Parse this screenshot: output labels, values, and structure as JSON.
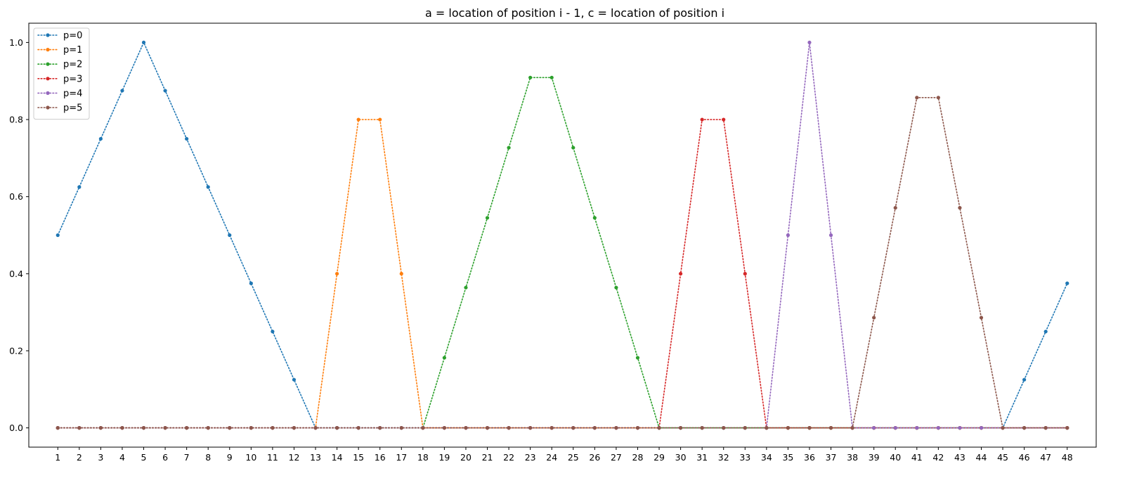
{
  "chart_data": {
    "type": "line",
    "title": "a = location of position i - 1, c = location of position i",
    "xlabel": "",
    "ylabel": "",
    "x": [
      1,
      2,
      3,
      4,
      5,
      6,
      7,
      8,
      9,
      10,
      11,
      12,
      13,
      14,
      15,
      16,
      17,
      18,
      19,
      20,
      21,
      22,
      23,
      24,
      25,
      26,
      27,
      28,
      29,
      30,
      31,
      32,
      33,
      34,
      35,
      36,
      37,
      38,
      39,
      40,
      41,
      42,
      43,
      44,
      45,
      46,
      47,
      48
    ],
    "x_tick_labels": [
      "1",
      "2",
      "3",
      "4",
      "5",
      "6",
      "7",
      "8",
      "9",
      "10",
      "11",
      "12",
      "13",
      "14",
      "15",
      "16",
      "17",
      "18",
      "19",
      "20",
      "21",
      "22",
      "23",
      "24",
      "25",
      "26",
      "27",
      "28",
      "29",
      "30",
      "31",
      "32",
      "33",
      "34",
      "35",
      "36",
      "37",
      "38",
      "39",
      "40",
      "41",
      "42",
      "43",
      "44",
      "45",
      "46",
      "47",
      "48"
    ],
    "y_ticks": [
      0.0,
      0.2,
      0.4,
      0.6,
      0.8,
      1.0
    ],
    "y_tick_labels": [
      "0.0",
      "0.2",
      "0.4",
      "0.6",
      "0.8",
      "1.0"
    ],
    "xlim": [
      -0.35,
      49.35
    ],
    "ylim": [
      -0.05,
      1.05
    ],
    "grid": false,
    "legend": "upper-left",
    "line_style": "dotted",
    "marker": "circle",
    "series": [
      {
        "name": "p=0",
        "color": "#1f77b4",
        "values": [
          0.5,
          0.625,
          0.75,
          0.875,
          1.0,
          0.875,
          0.75,
          0.625,
          0.5,
          0.375,
          0.25,
          0.125,
          0,
          0,
          0,
          0,
          0,
          0,
          0,
          0,
          0,
          0,
          0,
          0,
          0,
          0,
          0,
          0,
          0,
          0,
          0,
          0,
          0,
          0,
          0,
          0,
          0,
          0,
          0,
          0,
          0,
          0,
          0,
          0,
          0,
          0.125,
          0.25,
          0.375
        ]
      },
      {
        "name": "p=1",
        "color": "#ff7f0e",
        "values": [
          0,
          0,
          0,
          0,
          0,
          0,
          0,
          0,
          0,
          0,
          0,
          0,
          0,
          0.4,
          0.8,
          0.8,
          0.4,
          0,
          0,
          0,
          0,
          0,
          0,
          0,
          0,
          0,
          0,
          0,
          0,
          0,
          0,
          0,
          0,
          0,
          0,
          0,
          0,
          0,
          0,
          0,
          0,
          0,
          0,
          0,
          0,
          0,
          0,
          0
        ]
      },
      {
        "name": "p=2",
        "color": "#2ca02c",
        "values": [
          0,
          0,
          0,
          0,
          0,
          0,
          0,
          0,
          0,
          0,
          0,
          0,
          0,
          0,
          0,
          0,
          0,
          0,
          0.182,
          0.364,
          0.545,
          0.727,
          0.909,
          0.909,
          0.727,
          0.545,
          0.364,
          0.182,
          0,
          0,
          0,
          0,
          0,
          0,
          0,
          0,
          0,
          0,
          0,
          0,
          0,
          0,
          0,
          0,
          0,
          0,
          0,
          0
        ]
      },
      {
        "name": "p=3",
        "color": "#d62728",
        "values": [
          0,
          0,
          0,
          0,
          0,
          0,
          0,
          0,
          0,
          0,
          0,
          0,
          0,
          0,
          0,
          0,
          0,
          0,
          0,
          0,
          0,
          0,
          0,
          0,
          0,
          0,
          0,
          0,
          0,
          0.4,
          0.8,
          0.8,
          0.4,
          0,
          0,
          0,
          0,
          0,
          0,
          0,
          0,
          0,
          0,
          0,
          0,
          0,
          0,
          0
        ]
      },
      {
        "name": "p=4",
        "color": "#9467bd",
        "values": [
          0,
          0,
          0,
          0,
          0,
          0,
          0,
          0,
          0,
          0,
          0,
          0,
          0,
          0,
          0,
          0,
          0,
          0,
          0,
          0,
          0,
          0,
          0,
          0,
          0,
          0,
          0,
          0,
          0,
          0,
          0,
          0,
          0,
          0,
          0.5,
          1.0,
          0.5,
          0,
          0,
          0,
          0,
          0,
          0,
          0,
          0,
          0,
          0,
          0
        ]
      },
      {
        "name": "p=5",
        "color": "#8c564b",
        "values": [
          0,
          0,
          0,
          0,
          0,
          0,
          0,
          0,
          0,
          0,
          0,
          0,
          0,
          0,
          0,
          0,
          0,
          0,
          0,
          0,
          0,
          0,
          0,
          0,
          0,
          0,
          0,
          0,
          0,
          0,
          0,
          0,
          0,
          0,
          0,
          0,
          0,
          0,
          0.286,
          0.571,
          0.857,
          0.857,
          0.571,
          0.286,
          0,
          0,
          0,
          0
        ]
      }
    ]
  }
}
